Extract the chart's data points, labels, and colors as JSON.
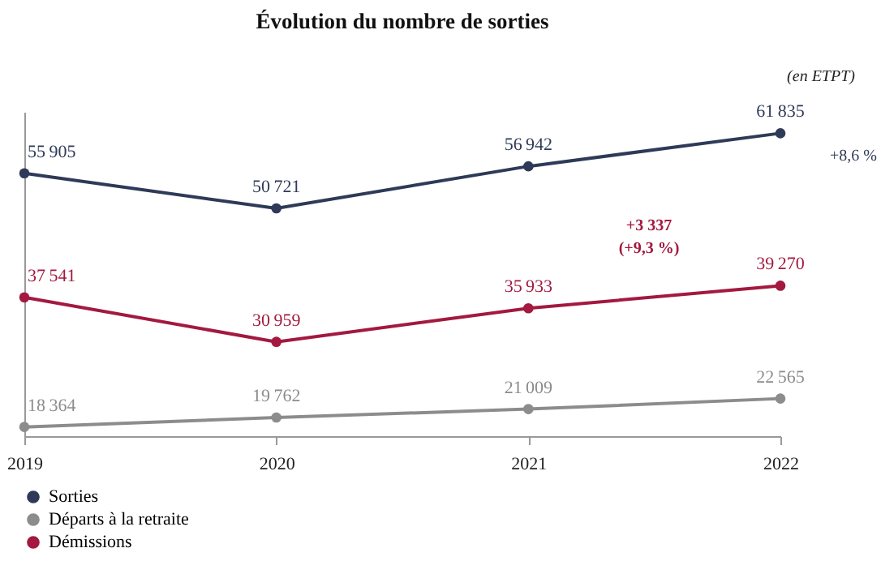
{
  "chart_data": {
    "type": "line",
    "title": "Évolution du nombre de sorties",
    "categories": [
      "2019",
      "2020",
      "2021",
      "2022"
    ],
    "series": [
      {
        "name": "Sorties",
        "color": "#2e3a57",
        "values": [
          55905,
          50721,
          56942,
          61835
        ]
      },
      {
        "name": "Départs à la retraite",
        "color": "#8c8c8c",
        "values": [
          18364,
          19762,
          21009,
          22565
        ]
      },
      {
        "name": "Démissions",
        "color": "#a3193f",
        "values": [
          37541,
          30959,
          35933,
          39270
        ]
      }
    ],
    "ylim": [
      17000,
      65000
    ],
    "tick_labels": "x",
    "grid": false,
    "marker": "circle",
    "line_style": "solid",
    "legend": "bottom",
    "data_labels": true,
    "annotations": [
      "(en ETPT)",
      "+8,6 %",
      "+3 337",
      "(+9,3 %)"
    ]
  }
}
